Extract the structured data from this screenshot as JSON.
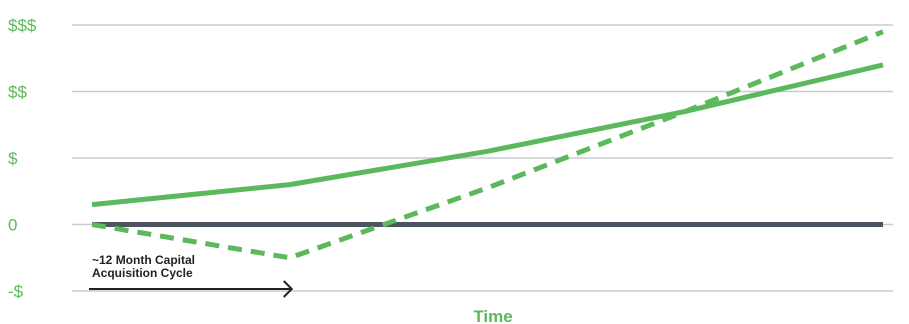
{
  "chart_data": {
    "type": "line",
    "x": [
      0,
      1,
      2,
      3,
      4
    ],
    "xlabel": "Time",
    "ylabel": "",
    "y_tick_labels": [
      "-$",
      "0",
      "$",
      "$$",
      "$$$"
    ],
    "y_tick_values": [
      -1,
      0,
      1,
      2,
      3
    ],
    "ylim": [
      -1,
      3
    ],
    "xlim": [
      0,
      4
    ],
    "grid": true,
    "series": [
      {
        "style": "solid",
        "color": "#5cb85c",
        "x": [
          0,
          1,
          2,
          3,
          4
        ],
        "values": [
          0.3,
          0.6,
          1.1,
          1.7,
          2.4
        ]
      },
      {
        "style": "dashed",
        "color": "#5cb85c",
        "x": [
          0,
          1,
          2,
          3,
          4
        ],
        "values": [
          0.0,
          -0.5,
          0.55,
          1.7,
          2.9
        ]
      }
    ],
    "baseline": {
      "value": 0,
      "color": "#4a5560"
    },
    "annotation": {
      "text_lines": [
        "~12 Month Capital",
        "Acquisition Cycle"
      ],
      "x_start": 0,
      "x_end": 1
    }
  },
  "colors": {
    "accent": "#5cb85c",
    "grid": "#c8ccd0",
    "baseline": "#4a5560",
    "text": "#222222"
  }
}
